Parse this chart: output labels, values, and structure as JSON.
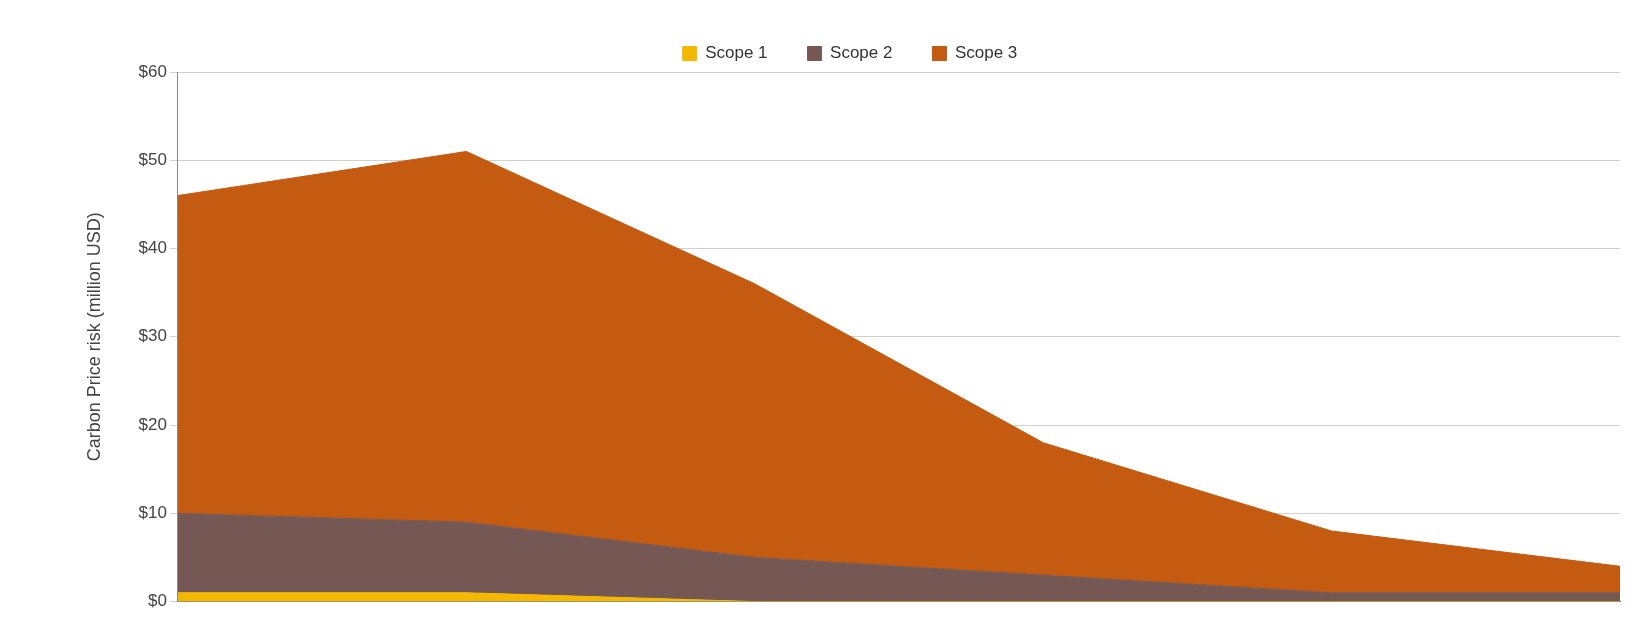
{
  "chart_data": {
    "type": "area",
    "ylabel": "Carbon Price risk (million USD)",
    "categories": [
      null,
      null,
      null,
      null,
      null,
      null
    ],
    "stacked": true,
    "series": [
      {
        "name": "Scope 1",
        "color": "#f5b800",
        "values": [
          1,
          1,
          0,
          0,
          0,
          0
        ]
      },
      {
        "name": "Scope 2",
        "color": "#755853",
        "values": [
          9,
          8,
          5,
          3,
          1,
          1
        ]
      },
      {
        "name": "Scope 3",
        "color": "#c55a11",
        "values": [
          36,
          42,
          31,
          15,
          7,
          3
        ]
      }
    ],
    "ylim": [
      0,
      60
    ],
    "yticks": [
      {
        "value": 0,
        "label": "$0"
      },
      {
        "value": 10,
        "label": "$10"
      },
      {
        "value": 20,
        "label": "$20"
      },
      {
        "value": 30,
        "label": "$30"
      },
      {
        "value": 40,
        "label": "$40"
      },
      {
        "value": 50,
        "label": "$50"
      },
      {
        "value": 60,
        "label": "$60"
      }
    ],
    "grid": "y",
    "legend": "top"
  }
}
